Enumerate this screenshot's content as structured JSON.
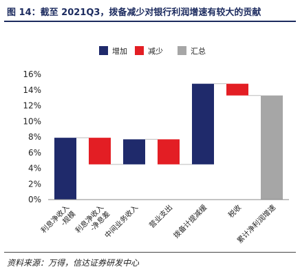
{
  "title": "图 14：截至 2021Q3，拨备减少对银行利润增速有较大的贡献",
  "source": "资料来源：万得，信达证券研发中心",
  "colors": {
    "increase": "#1f2a6b",
    "decrease": "#e31e24",
    "total": "#a6a6a6"
  },
  "chart_data": {
    "type": "bar",
    "subtype": "waterfall",
    "legend": [
      {
        "name": "增加",
        "color": "#1f2a6b"
      },
      {
        "name": "减少",
        "color": "#e31e24"
      },
      {
        "name": "汇总",
        "color": "#a6a6a6"
      }
    ],
    "legend_position": "top",
    "ylim": [
      0,
      16
    ],
    "yticks": [
      "0%",
      "2%",
      "4%",
      "6%",
      "8%",
      "10%",
      "12%",
      "14%",
      "16%"
    ],
    "ytick_values": [
      0,
      2,
      4,
      6,
      8,
      10,
      12,
      14,
      16
    ],
    "grid": false,
    "categories": [
      "利息净收入-规模",
      "利息净收入-净息差",
      "中间业务收入",
      "营业支出",
      "拨备计提减缓",
      "税收",
      "累计净利润增速"
    ],
    "bars": [
      {
        "category": "利息净收入-规模",
        "kind": "increase",
        "start": 0,
        "end": 7.9
      },
      {
        "category": "利息净收入-净息差",
        "kind": "decrease",
        "start": 7.9,
        "end": 4.5
      },
      {
        "category": "中间业务收入",
        "kind": "increase",
        "start": 4.5,
        "end": 7.7
      },
      {
        "category": "营业支出",
        "kind": "decrease",
        "start": 7.7,
        "end": 4.5
      },
      {
        "category": "拨备计提减缓",
        "kind": "increase",
        "start": 4.5,
        "end": 14.8
      },
      {
        "category": "税收",
        "kind": "decrease",
        "start": 14.8,
        "end": 13.3
      },
      {
        "category": "累计净利润增速",
        "kind": "total",
        "start": 0,
        "end": 13.3
      }
    ]
  }
}
